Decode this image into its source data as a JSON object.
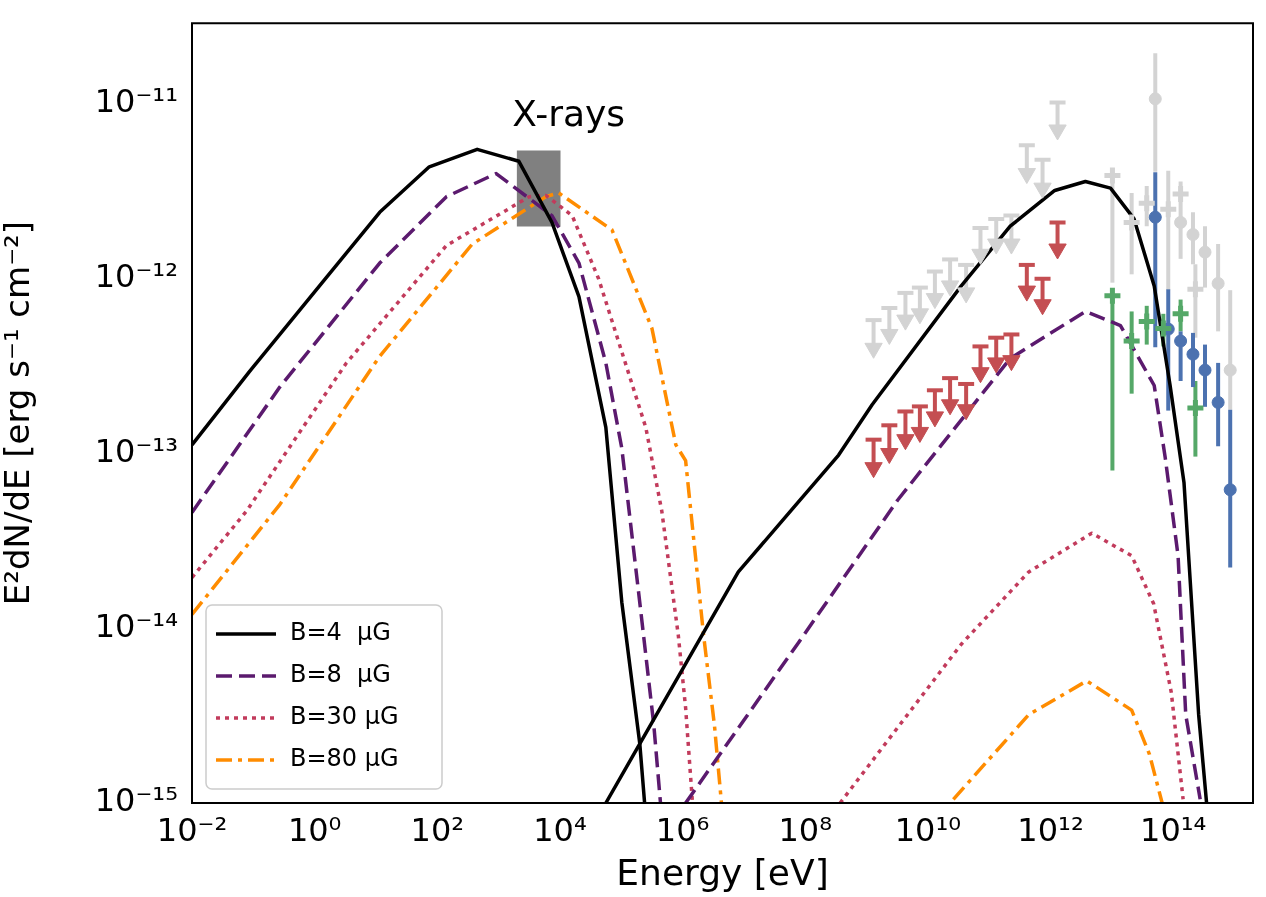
{
  "chart_data": {
    "type": "line",
    "xlabel": "Energy [eV]",
    "ylabel": "E²dN/dE [erg s⁻¹ cm⁻²]",
    "log": "xy",
    "grid": false,
    "legend": "bottom left",
    "xlim": [
      0.01,
      2000000000000000.0
    ],
    "ylim": [
      1e-15,
      2.9e-11
    ],
    "xticks": [
      {
        "value": 0.01,
        "label": "10⁻²"
      },
      {
        "value": 1,
        "label": "10⁰"
      },
      {
        "value": 100,
        "label": "10²"
      },
      {
        "value": 10000,
        "label": "10⁴"
      },
      {
        "value": 1000000,
        "label": "10⁶"
      },
      {
        "value": 100000000,
        "label": "10⁸"
      },
      {
        "value": 10000000000,
        "label": "10¹⁰"
      },
      {
        "value": 1000000000000,
        "label": "10¹²"
      },
      {
        "value": 100000000000000,
        "label": "10¹⁴"
      }
    ],
    "yticks": [
      {
        "value": 1e-15,
        "label": "10⁻¹⁵"
      },
      {
        "value": 1e-14,
        "label": "10⁻¹⁴"
      },
      {
        "value": 1e-13,
        "label": "10⁻¹³"
      },
      {
        "value": 1e-12,
        "label": "10⁻¹²"
      },
      {
        "value": 1e-11,
        "label": "10⁻¹¹"
      }
    ],
    "annotations": [
      "X-rays"
    ],
    "series": [
      {
        "type": "bar",
        "color": "#808080",
        "x": [
          4500
        ],
        "base": [
          2e-12
        ],
        "values": [
          3.4e-12
        ]
      },
      {
        "name": "B=4  μG",
        "color": "#000000",
        "line_style": "solid",
        "x": [
          0.01,
          0.087,
          1.2,
          11.5,
          74,
          447,
          2140,
          7400,
          20400,
          56000,
          102000,
          200000,
          240000
        ],
        "values": [
          1.12e-13,
          2.95e-13,
          9.1e-13,
          2.4e-12,
          4.37e-12,
          5.5e-12,
          4.7e-12,
          2.1e-12,
          7.9e-13,
          1.41e-13,
          1.41e-14,
          2.2e-15,
          1e-15
        ]
      },
      {
        "color": "#000000",
        "line_style": "solid",
        "x": [
          56000,
          8100000.0,
          350000000.0,
          1230000000.0,
          35000000000.0,
          220000000000.0,
          1170000000000.0,
          3700000000000.0,
          9500000000000.0,
          23000000000000.0,
          49000000000000.0,
          89000000000000.0,
          150000000000000.0,
          260000000000000.0,
          350000000000000.0
        ],
        "values": [
          1e-15,
          2.1e-14,
          9.8e-14,
          1.9e-13,
          9.1e-13,
          2e-12,
          3.2e-12,
          3.6e-12,
          3.3e-12,
          2.2e-12,
          9.1e-13,
          2.45e-13,
          6.8e-14,
          3.2e-15,
          1e-15
        ]
      },
      {
        "name": "B=8  μG",
        "color": "#5b1a6e",
        "line_style": "dashed",
        "x": [
          0.01,
          0.27,
          11.5,
          141,
          912,
          7400,
          20400,
          56000,
          102000,
          200000,
          339000,
          436000
        ],
        "values": [
          4.6e-14,
          2.4e-13,
          1.23e-12,
          2.95e-12,
          4e-12,
          2.3e-12,
          1.23e-12,
          3.3e-13,
          1.07e-13,
          1.41e-14,
          2.8e-15,
          1e-15
        ]
      },
      {
        "color": "#5b1a6e",
        "line_style": "dashed",
        "x": [
          1120000.0,
          78000000.0,
          3200000000.0,
          220000000000.0,
          3700000000000.0,
          13800000000000.0,
          49000000000000.0,
          74000000000000.0,
          120000000000000.0,
          160000000000000.0,
          275000000000000.0
        ],
        "values": [
          1e-15,
          8.3e-15,
          5.4e-14,
          3.5e-13,
          6.5e-13,
          5.4e-13,
          2.45e-13,
          9.5e-14,
          2.6e-14,
          3.2e-15,
          1.05e-15
        ]
      },
      {
        "name": "B=30 μG",
        "color": "#c23b5c",
        "line_style": "dotted",
        "x": [
          0.01,
          0.078,
          3.3,
          141,
          3160,
          5900,
          15800,
          42700,
          251000,
          457000,
          851000,
          1120000.0,
          1450000.0
        ],
        "values": [
          1.95e-14,
          4.7e-14,
          3.3e-13,
          1.55e-12,
          2.95e-12,
          3e-12,
          2.3e-12,
          1e-12,
          1.41e-13,
          4.7e-14,
          9.1e-15,
          3.5e-15,
          1e-15
        ]
      },
      {
        "color": "#c23b5c",
        "line_style": "dotted",
        "x": [
          370000000.0,
          35000000000.0,
          440000000000.0,
          4700000000000.0,
          21000000000000.0,
          48000000000000.0,
          93000000000000.0,
          145000000000000.0
        ],
        "values": [
          1e-15,
          8.1e-15,
          2.1e-14,
          3.5e-14,
          2.6e-14,
          1.38e-14,
          4.3e-15,
          1.05e-15
        ]
      },
      {
        "name": "B=80 μG",
        "color": "#ff8c00",
        "line_style": "dashdot",
        "x": [
          0.01,
          0.27,
          11.5,
          372,
          5900,
          9500,
          70800,
          316000,
          776000,
          1120000.0,
          2200000.0,
          3300000.0,
          4300000.0
        ],
        "values": [
          1.2e-14,
          5.1e-14,
          3.6e-13,
          1.58e-12,
          2.95e-12,
          3.1e-12,
          1.9e-12,
          5.2e-13,
          1.12e-13,
          9.1e-14,
          9.1e-15,
          2.8e-15,
          1e-15
        ]
      },
      {
        "color": "#ff8c00",
        "line_style": "dashdot",
        "x": [
          26000000000.0,
          440000000000.0,
          3900000000000.0,
          21000000000000.0,
          41000000000000.0,
          66000000000000.0
        ],
        "values": [
          1.05e-15,
          3.2e-15,
          5e-15,
          3.4e-15,
          1.9e-15,
          1e-15
        ]
      },
      {
        "type": "scatter",
        "color": "#d3d3d3",
        "marker": "triangle",
        "x": [
          1300000000.0,
          2350000000.0,
          4300000000.0,
          7400000000.0,
          13000000000.0,
          23000000000.0,
          42000000000.0,
          72000000000.0,
          130000000000.0,
          230000000000.0,
          410000000000.0,
          740000000000.0,
          1300000000000.0
        ],
        "values": [
          4e-13,
          4.8e-13,
          5.8e-13,
          6.3e-13,
          7.7e-13,
          9.1e-13,
          8.3e-13,
          1.38e-12,
          1.58e-12,
          1.58e-12,
          4e-12,
          3.3e-12,
          7.1e-12
        ],
        "errors": [
          [
            4e-13,
            5.8e-13
          ],
          [
            4.8e-13,
            6.8e-13
          ],
          [
            5.8e-13,
            8.3e-13
          ],
          [
            6.3e-13,
            8.9e-13
          ],
          [
            7.7e-13,
            1.1e-12
          ],
          [
            9.1e-13,
            1.29e-12
          ],
          [
            8.3e-13,
            1.2e-12
          ],
          [
            1.38e-12,
            1.95e-12
          ],
          [
            1.58e-12,
            2.2e-12
          ],
          [
            1.58e-12,
            2.3e-12
          ],
          [
            4e-12,
            5.8e-12
          ],
          [
            3.3e-12,
            4.8e-12
          ],
          [
            7.1e-12,
            1.02e-11
          ]
        ]
      },
      {
        "type": "scatter",
        "color": "#c44e52",
        "marker": "triangle",
        "x": [
          1300000000.0,
          2350000000.0,
          4300000000.0,
          7400000000.0,
          13000000000.0,
          23000000000.0,
          42000000000.0,
          72000000000.0,
          130000000000.0,
          230000000000.0,
          410000000000.0,
          740000000000.0,
          1300000000000.0
        ],
        "values": [
          8.3e-14,
          1e-13,
          1.2e-13,
          1.32e-13,
          1.62e-13,
          1.9e-13,
          1.78e-13,
          2.9e-13,
          3.3e-13,
          3.4e-13,
          8.5e-13,
          7.1e-13,
          1.48e-12
        ],
        "errors": [
          [
            8.3e-14,
            1.2e-13
          ],
          [
            1e-13,
            1.45e-13
          ],
          [
            1.2e-13,
            1.74e-13
          ],
          [
            1.32e-13,
            1.86e-13
          ],
          [
            1.62e-13,
            2.3e-13
          ],
          [
            1.9e-13,
            2.7e-13
          ],
          [
            1.78e-13,
            2.5e-13
          ],
          [
            2.9e-13,
            4.1e-13
          ],
          [
            3.3e-13,
            4.6e-13
          ],
          [
            3.4e-13,
            4.8e-13
          ],
          [
            8.5e-13,
            1.2e-12
          ],
          [
            7.1e-13,
            1e-12
          ],
          [
            1.48e-12,
            2.1e-12
          ]
        ]
      },
      {
        "type": "scatter",
        "color": "#d3d3d3",
        "marker": "cross",
        "x": [
          10200000000000.0,
          21000000000000.0,
          37000000000000.0,
          83000000000000.0,
          132000000000000.0,
          230000000000000.0
        ],
        "values": [
          3.9e-12,
          2.1e-12,
          2.7e-12,
          2.5e-12,
          3.05e-12,
          8.7e-13
        ],
        "errors": [
          [
            9.5e-13,
            4.3e-12
          ],
          [
            1.06e-12,
            3.1e-12
          ],
          [
            2e-12,
            3.4e-12
          ],
          [
            8.6e-13,
            4.15e-12
          ],
          null,
          [
            4.6e-13,
            1.21e-12
          ]
        ]
      },
      {
        "type": "scatter",
        "color": "#d3d3d3",
        "marker": "circle",
        "x": [
          51000000000000.0,
          132000000000000.0,
          210000000000000.0,
          330000000000000.0,
          540000000000000.0,
          850000000000000.0
        ],
        "values": [
          1.07e-11,
          2.1e-12,
          1.79e-12,
          1.42e-12,
          9.4e-13,
          3e-13
        ],
        "errors": [
          [
            4.1e-12,
            1.95e-11
          ],
          [
            1.3e-12,
            3.6e-12
          ],
          [
            1.21e-12,
            2.4e-12
          ],
          [
            8.9e-13,
            2e-12
          ],
          [
            5e-13,
            1.58e-12
          ],
          [
            1.78e-13,
            8.6e-13
          ]
        ]
      },
      {
        "type": "scatter",
        "color": "#55a868",
        "marker": "cross",
        "x": [
          10200000000000.0,
          21000000000000.0,
          37000000000000.0,
          69000000000000.0,
          132000000000000.0,
          230000000000000.0
        ],
        "values": [
          8e-13,
          4.4e-13,
          5.7e-13,
          5.2e-13,
          6.3e-13,
          1.82e-13
        ],
        "errors": [
          [
            8e-14,
            8.2e-13
          ],
          [
            2.2e-13,
            6.5e-13
          ],
          [
            4.2e-13,
            7e-13
          ],
          [
            4.1e-13,
            6.3e-13
          ],
          [
            5e-13,
            7.6e-13
          ],
          [
            9.6e-14,
            2.6e-13
          ]
        ]
      },
      {
        "type": "scatter",
        "color": "#4c72b0",
        "marker": "circle",
        "x": [
          51000000000000.0,
          83000000000000.0,
          132000000000000.0,
          210000000000000.0,
          330000000000000.0,
          540000000000000.0,
          850000000000000.0
        ],
        "values": [
          2.25e-12,
          5.15e-13,
          4.4e-13,
          3.7e-13,
          3e-13,
          1.96e-13,
          6.2e-14
        ],
        "errors": [
          [
            4.05e-13,
            4.07e-12
          ],
          [
            1.76e-13,
            8.7e-13
          ],
          [
            2.6e-13,
            5e-13
          ],
          [
            2.4e-13,
            4.9e-13
          ],
          [
            1.85e-13,
            4.2e-13
          ],
          [
            1.1e-13,
            3.3e-13
          ],
          [
            2.23e-14,
            1.78e-13
          ]
        ]
      }
    ]
  }
}
